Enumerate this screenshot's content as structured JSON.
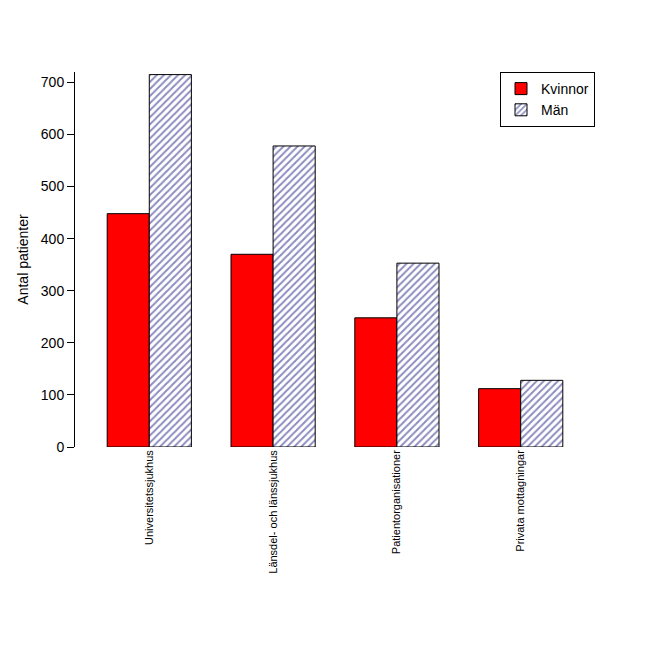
{
  "chart_data": {
    "type": "bar",
    "y_label": "Antal patienter",
    "categories": [
      "Universitetssjukhus",
      "Länsdel- och länssjukhus",
      "Patientorganisationer",
      "Privata mottagningar"
    ],
    "series": [
      {
        "name": "Kvinnor",
        "color": "#ff0000",
        "marker": "solid",
        "values": [
          448,
          370,
          248,
          112
        ]
      },
      {
        "name": "Män",
        "color": "#1a1a80",
        "marker": "hatch",
        "values": [
          715,
          578,
          353,
          128
        ]
      }
    ],
    "ylim": [
      0,
      720
    ],
    "yticks": [
      0,
      100,
      200,
      300,
      400,
      500,
      600,
      700
    ],
    "grid": false,
    "legend": "top right"
  }
}
